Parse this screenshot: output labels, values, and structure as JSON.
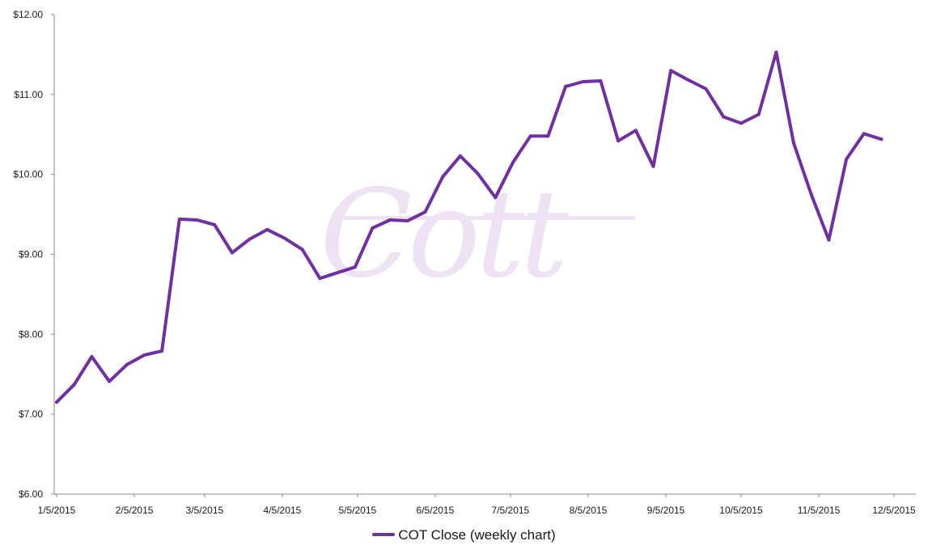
{
  "chart_data": {
    "type": "line",
    "title": "",
    "xlabel": "",
    "ylabel": "",
    "ylim": [
      6,
      12
    ],
    "grid": false,
    "legend": "bottom-center",
    "y_ticks": [
      "$6.00",
      "$7.00",
      "$8.00",
      "$9.00",
      "$10.00",
      "$11.00",
      "$12.00"
    ],
    "x_tick_labels": [
      "1/5/2015",
      "2/5/2015",
      "3/5/2015",
      "4/5/2015",
      "5/5/2015",
      "6/5/2015",
      "7/5/2015",
      "8/5/2015",
      "9/5/2015",
      "10/5/2015",
      "11/5/2015",
      "12/5/2015"
    ],
    "x_tick_dates": [
      "2015-01-05",
      "2015-02-05",
      "2015-03-05",
      "2015-04-05",
      "2015-05-05",
      "2015-06-05",
      "2015-07-05",
      "2015-08-05",
      "2015-09-05",
      "2015-10-05",
      "2015-11-05",
      "2015-12-05"
    ],
    "series": [
      {
        "name": "COT Close (weekly chart)",
        "color": "#7030a0",
        "x": [
          "2015-01-05",
          "2015-01-12",
          "2015-01-19",
          "2015-01-26",
          "2015-02-02",
          "2015-02-09",
          "2015-02-16",
          "2015-02-23",
          "2015-03-02",
          "2015-03-09",
          "2015-03-16",
          "2015-03-23",
          "2015-03-30",
          "2015-04-06",
          "2015-04-13",
          "2015-04-20",
          "2015-04-27",
          "2015-05-04",
          "2015-05-11",
          "2015-05-18",
          "2015-05-25",
          "2015-06-01",
          "2015-06-08",
          "2015-06-15",
          "2015-06-22",
          "2015-06-29",
          "2015-07-06",
          "2015-07-13",
          "2015-07-20",
          "2015-07-27",
          "2015-08-03",
          "2015-08-10",
          "2015-08-17",
          "2015-08-24",
          "2015-08-31",
          "2015-09-07",
          "2015-09-14",
          "2015-09-21",
          "2015-09-28",
          "2015-10-05",
          "2015-10-12",
          "2015-10-19",
          "2015-10-26",
          "2015-11-02",
          "2015-11-09",
          "2015-11-16",
          "2015-11-23",
          "2015-11-30"
        ],
        "values": [
          7.15,
          7.37,
          7.72,
          7.41,
          7.62,
          7.74,
          7.79,
          9.44,
          9.43,
          9.37,
          9.02,
          9.19,
          9.31,
          9.2,
          9.06,
          8.7,
          8.77,
          8.84,
          9.33,
          9.43,
          9.42,
          9.53,
          9.97,
          10.23,
          10.01,
          9.71,
          10.15,
          10.48,
          10.48,
          11.1,
          11.16,
          11.17,
          10.42,
          10.55,
          10.1,
          11.3,
          11.18,
          11.07,
          10.72,
          10.64,
          10.75,
          11.53,
          10.39,
          9.75,
          9.18,
          10.19,
          10.51,
          10.44
        ]
      }
    ]
  },
  "watermark": {
    "text": "Cott"
  }
}
